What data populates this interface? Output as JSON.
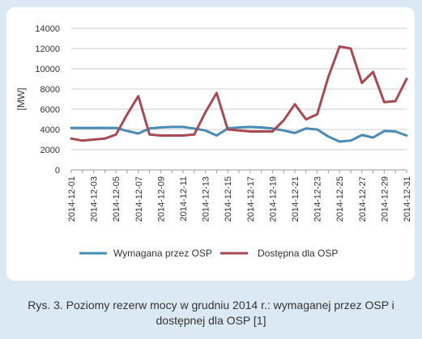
{
  "colors": {
    "background": "#dbe9f4",
    "panel": "#ffffff",
    "series_required": "#4a8bb3",
    "series_available": "#a64a54",
    "grid": "#cccccc"
  },
  "caption": "Rys. 3. Poziomy rezerw mocy w grudniu 2014 r.: wymaganej przez OSP i dostępnej dla OSP [1]",
  "chart_data": {
    "type": "line",
    "title": "",
    "xlabel": "",
    "ylabel": "[MW]",
    "ylim": [
      0,
      14000
    ],
    "yticks": [
      0,
      2000,
      4000,
      6000,
      8000,
      10000,
      12000,
      14000
    ],
    "x": [
      "2014-12-01",
      "2014-12-02",
      "2014-12-03",
      "2014-12-04",
      "2014-12-05",
      "2014-12-06",
      "2014-12-07",
      "2014-12-08",
      "2014-12-09",
      "2014-12-10",
      "2014-12-11",
      "2014-12-12",
      "2014-12-13",
      "2014-12-14",
      "2014-12-15",
      "2014-12-16",
      "2014-12-17",
      "2014-12-18",
      "2014-12-19",
      "2014-12-20",
      "2014-12-21",
      "2014-12-22",
      "2014-12-23",
      "2014-12-24",
      "2014-12-25",
      "2014-12-26",
      "2014-12-27",
      "2014-12-28",
      "2014-12-29",
      "2014-12-30",
      "2014-12-31"
    ],
    "xtick_labels": [
      "2014-12-01",
      "2014-12-03",
      "2014-12-05",
      "2014-12-07",
      "2014-12-09",
      "2014-12-11",
      "2014-12-13",
      "2014-12-15",
      "2014-12-17",
      "2014-12-19",
      "2014-12-21",
      "2014-12-23",
      "2014-12-25",
      "2014-12-27",
      "2014-12-29",
      "2014-12-31"
    ],
    "grid": "horizontal",
    "legend_position": "bottom",
    "series": [
      {
        "name": "Wymagana przez OSP",
        "color": "#4a8bb3",
        "values": [
          4150,
          4150,
          4150,
          4150,
          4150,
          3850,
          3600,
          4100,
          4200,
          4250,
          4250,
          4100,
          3900,
          3400,
          4100,
          4200,
          4250,
          4200,
          4100,
          3900,
          3650,
          4100,
          4000,
          3300,
          2800,
          2900,
          3450,
          3200,
          3850,
          3800,
          3400
        ]
      },
      {
        "name": "Dostępna dla OSP",
        "color": "#a64a54",
        "values": [
          3100,
          2900,
          3000,
          3100,
          3500,
          5500,
          7300,
          3500,
          3400,
          3400,
          3400,
          3500,
          5700,
          7600,
          4000,
          3900,
          3800,
          3800,
          3800,
          4900,
          6500,
          5000,
          5500,
          9200,
          12200,
          12000,
          8600,
          9700,
          6700,
          6800,
          9000
        ]
      }
    ]
  }
}
